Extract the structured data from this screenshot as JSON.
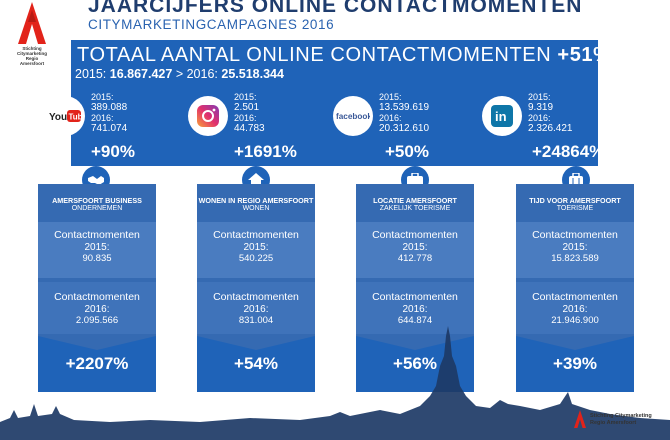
{
  "logo": {
    "line1": "Stichting",
    "line2": "Citymarketing",
    "line3": "Regio",
    "line4": "Amersfoort"
  },
  "header": {
    "title": "JAARCIJFERS ONLINE CONTACTMOMENTEN",
    "subtitle": "CITYMARKETINGCAMPAGNES 2016"
  },
  "banner": {
    "title": "TOTAAL AANTAL ONLINE CONTACTMOMENTEN",
    "growth": "+51%",
    "y2015_label": "2015:",
    "y2015_value": "16.867.427",
    "sep": ">",
    "y2016_label": "2016:",
    "y2016_value": "25.518.344"
  },
  "social": [
    {
      "icon": "youtube-icon",
      "brand": "YouTube",
      "l2015": "2015:",
      "v2015": "389.088",
      "l2016": "2016:",
      "v2016": "741.074",
      "growth": "+90%"
    },
    {
      "icon": "instagram-icon",
      "brand": "Instagram",
      "l2015": "2015:",
      "v2015": "2.501",
      "l2016": "2016:",
      "v2016": "44.783",
      "growth": "+1691%"
    },
    {
      "icon": "facebook-icon",
      "brand": "facebook",
      "l2015": "2015:",
      "v2015": "13.539.619",
      "l2016": "2016:",
      "v2016": "20.312.610",
      "growth": "+50%"
    },
    {
      "icon": "linkedin-icon",
      "brand": "in",
      "l2015": "2015:",
      "v2015": "9.319",
      "l2016": "2016:",
      "v2016": "2.326.421",
      "growth": "+24864%"
    }
  ],
  "panels": [
    {
      "icon": "handshake-icon",
      "category": "AMERSFOORT BUSINESS",
      "sub": "ONDERNEMEN",
      "label": "Contactmomenten",
      "y2015": "2015:",
      "v2015": "90.835",
      "y2016": "2016:",
      "v2016": "2.095.566",
      "growth": "+2207%"
    },
    {
      "icon": "house-icon",
      "category": "WONEN IN REGIO AMERSFOORT",
      "sub": "WONEN",
      "label": "Contactmomenten",
      "y2015": "2015:",
      "v2015": "540.225",
      "y2016": "2016:",
      "v2016": "831.004",
      "growth": "+54%"
    },
    {
      "icon": "briefcase-icon",
      "category": "LOCATIE AMERSFOORT",
      "sub": "ZAKELIJK TOERISME",
      "label": "Contactmomenten",
      "y2015": "2015:",
      "v2015": "412.778",
      "y2016": "2016:",
      "v2016": "644.874",
      "growth": "+56%"
    },
    {
      "icon": "suitcase-icon",
      "category": "TIJD VOOR AMERSFOORT",
      "sub": "TOERISME",
      "label": "Contactmomenten",
      "y2015": "2015:",
      "v2015": "15.823.589",
      "y2016": "2016:",
      "v2016": "21.946.900",
      "growth": "+39%"
    }
  ],
  "footer": {
    "line1": "Stichting Citymarketing",
    "line2": "Regio Amersfoort"
  },
  "colors": {
    "navy": "#1f3d6e",
    "blue": "#1f63b8",
    "panel": "#356ab2",
    "red": "#e2231a"
  }
}
